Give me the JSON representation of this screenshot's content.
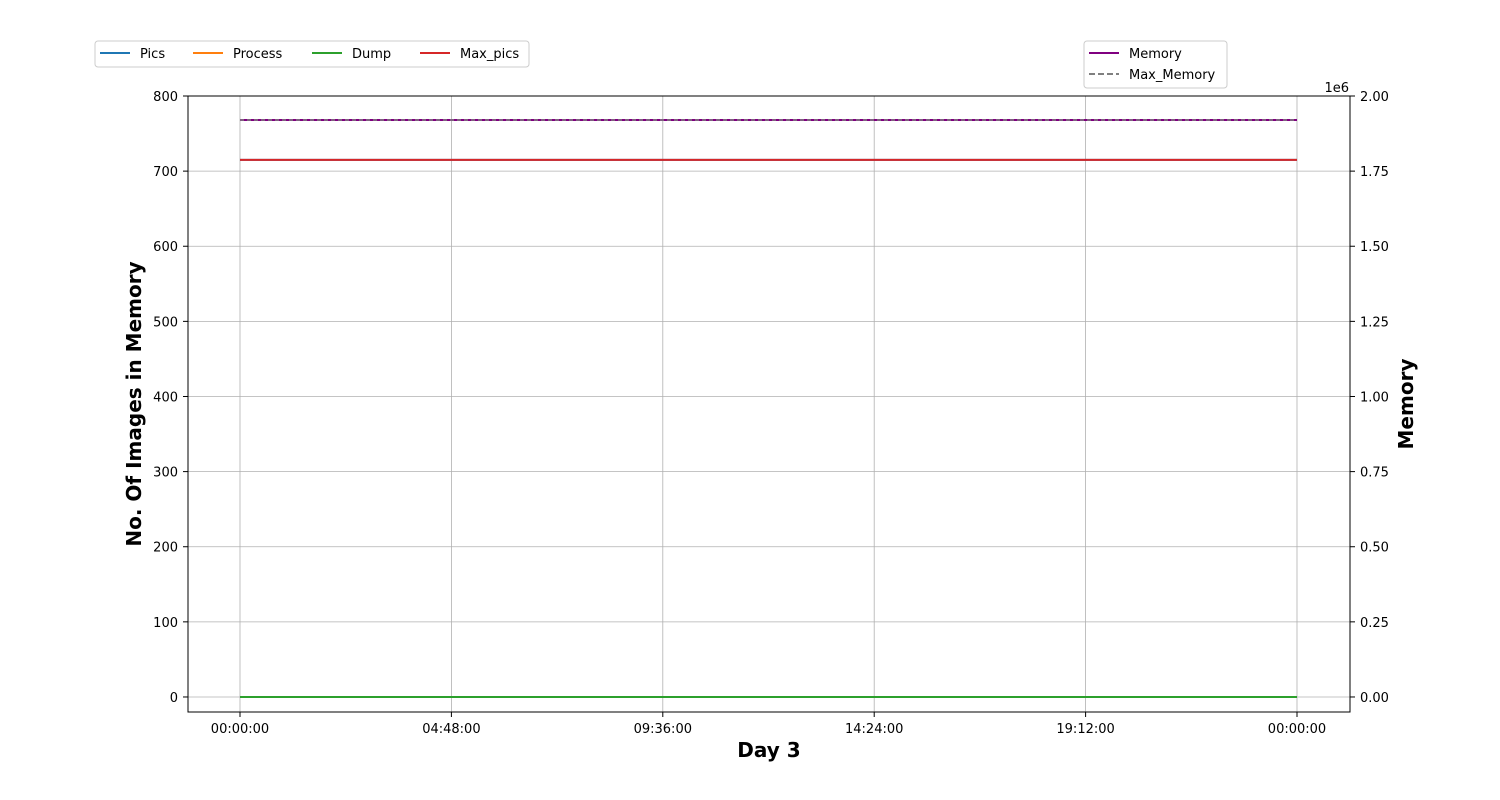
{
  "chart_data": {
    "type": "line",
    "xlabel": "Day 3",
    "ylabel_left": "No. Of Images in Memory",
    "ylabel_right": "Memory",
    "right_axis_offset_label": "1e6",
    "x_ticks": [
      "00:00:00",
      "04:48:00",
      "09:36:00",
      "14:24:00",
      "19:12:00",
      "00:00:00"
    ],
    "x_range": [
      0,
      24
    ],
    "x_tick_hours": [
      0,
      4.8,
      9.6,
      14.4,
      19.2,
      24
    ],
    "y_left_ticks": [
      "0",
      "100",
      "200",
      "300",
      "400",
      "500",
      "600",
      "700",
      "800"
    ],
    "y_left_ylim": [
      -20,
      800
    ],
    "y_right_ticks": [
      "0.00",
      "0.25",
      "0.50",
      "0.75",
      "1.00",
      "1.25",
      "1.50",
      "1.75",
      "2.00"
    ],
    "y_right_ylim": [
      -0.05,
      2.0
    ],
    "grid": true,
    "legend_left": {
      "placement": "top-left",
      "entries": [
        {
          "name": "Pics",
          "color": "#1f77b4",
          "dash": "solid"
        },
        {
          "name": "Process",
          "color": "#ff7f0e",
          "dash": "solid"
        },
        {
          "name": "Dump",
          "color": "#2ca02c",
          "dash": "solid"
        },
        {
          "name": "Max_pics",
          "color": "#d62728",
          "dash": "solid"
        }
      ]
    },
    "legend_right": {
      "placement": "top-right",
      "entries": [
        {
          "name": "Memory",
          "color": "#800080",
          "dash": "solid"
        },
        {
          "name": "Max_Memory",
          "color": "#808080",
          "dash": "dashed"
        }
      ]
    },
    "series": [
      {
        "name": "Pics",
        "axis": "left",
        "color": "#1f77b4",
        "dash": "solid",
        "x": [
          0,
          24
        ],
        "y": [
          715,
          715
        ]
      },
      {
        "name": "Process",
        "axis": "left",
        "color": "#ff7f0e",
        "dash": "solid",
        "x": [
          0,
          24
        ],
        "y": [
          0,
          0
        ]
      },
      {
        "name": "Dump",
        "axis": "left",
        "color": "#2ca02c",
        "dash": "solid",
        "x": [
          0,
          24
        ],
        "y": [
          0,
          0
        ]
      },
      {
        "name": "Max_pics",
        "axis": "left",
        "color": "#d62728",
        "dash": "solid",
        "x": [
          0,
          24
        ],
        "y": [
          715,
          715
        ]
      },
      {
        "name": "Memory",
        "axis": "right",
        "color": "#800080",
        "dash": "solid",
        "x": [
          0,
          24
        ],
        "y": [
          1.92,
          1.92
        ]
      },
      {
        "name": "Max_Memory",
        "axis": "right",
        "color": "#808080",
        "dash": "dashed",
        "x": [
          0,
          24
        ],
        "y": [
          1.92,
          1.92
        ]
      }
    ]
  }
}
